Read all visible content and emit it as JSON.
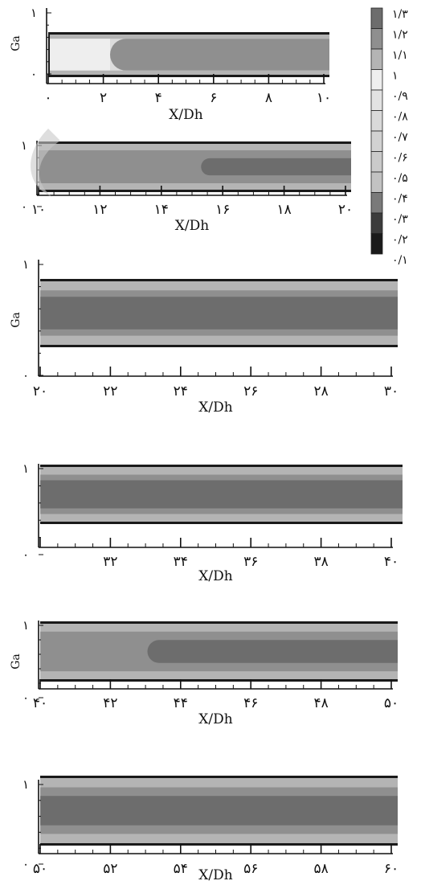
{
  "chart_data": [
    {
      "type": "heatmap",
      "panel": 1,
      "xlabel": "X/Dh",
      "ylabel": "Ga",
      "xlim": [
        0,
        10
      ],
      "ylim": [
        0,
        1
      ],
      "xticks": [
        "۰",
        "۲",
        "۴",
        "۶",
        "۸",
        "۱۰"
      ],
      "yticks": [
        "۰",
        "۱"
      ],
      "bands": [
        {
          "y": [
            0.88,
            1.0
          ],
          "level": "۱/۱"
        },
        {
          "y": [
            0.12,
            0.88
          ],
          "level": "۱/۲",
          "from_x": 2.2
        },
        {
          "y": [
            0.12,
            0.88
          ],
          "level": "۱",
          "to_x": 2.2
        },
        {
          "y": [
            0.0,
            0.12
          ],
          "level": "۱/۱"
        }
      ]
    },
    {
      "type": "heatmap",
      "panel": 2,
      "xlabel": "X/Dh",
      "ylabel": "",
      "xlim": [
        10,
        20
      ],
      "ylim": [
        0,
        1
      ],
      "xticks": [
        "۱۰",
        "۱۲",
        "۱۴",
        "۱۶",
        "۱۸",
        "۲۰"
      ],
      "yticks": [
        "۰",
        "۱"
      ],
      "bands": [
        {
          "y": [
            0.85,
            1.0
          ],
          "level": "۱/۱"
        },
        {
          "y": [
            0.15,
            0.85
          ],
          "level": "۱/۲"
        },
        {
          "y": [
            0.32,
            0.68
          ],
          "level": "۱/۳",
          "from_x": 15.2
        },
        {
          "y": [
            0.0,
            0.15
          ],
          "level": "۱/۱"
        }
      ]
    },
    {
      "type": "heatmap",
      "panel": 3,
      "xlabel": "X/Dh",
      "ylabel": "Ga",
      "xlim": [
        20,
        30
      ],
      "ylim": [
        0,
        1
      ],
      "xticks": [
        "۲۰",
        "۲۲",
        "۲۴",
        "۲۶",
        "۲۸",
        "۳۰"
      ],
      "yticks": [
        "۰",
        "۱"
      ],
      "bands": [
        {
          "y": [
            0.85,
            1.0
          ],
          "level": "۱/۱"
        },
        {
          "y": [
            0.15,
            0.85
          ],
          "level": "۱/۲"
        },
        {
          "y": [
            0.25,
            0.75
          ],
          "level": "۱/۳"
        },
        {
          "y": [
            0.0,
            0.15
          ],
          "level": "۱/۱"
        }
      ]
    },
    {
      "type": "heatmap",
      "panel": 4,
      "xlabel": "X/Dh",
      "ylabel": "",
      "xlim": [
        30,
        40
      ],
      "ylim": [
        0,
        1
      ],
      "xticks": [
        "۳۲",
        "۳۴",
        "۳۶",
        "۳۸",
        "۴۰"
      ],
      "yticks": [
        "۰",
        "۱"
      ],
      "bands": [
        {
          "y": [
            0.85,
            1.0
          ],
          "level": "۱/۱"
        },
        {
          "y": [
            0.15,
            0.85
          ],
          "level": "۱/۲"
        },
        {
          "y": [
            0.25,
            0.75
          ],
          "level": "۱/۳"
        },
        {
          "y": [
            0.0,
            0.15
          ],
          "level": "۱/۱"
        }
      ]
    },
    {
      "type": "heatmap",
      "panel": 5,
      "xlabel": "X/Dh",
      "ylabel": "Ga",
      "xlim": [
        40,
        50
      ],
      "ylim": [
        0,
        1
      ],
      "xticks": [
        "۴۰",
        "۴۲",
        "۴۴",
        "۴۶",
        "۴۸",
        "۵۰"
      ],
      "yticks": [
        "۰",
        "۱"
      ],
      "bands": [
        {
          "y": [
            0.85,
            1.0
          ],
          "level": "۱/۱"
        },
        {
          "y": [
            0.15,
            0.85
          ],
          "level": "۱/۲"
        },
        {
          "y": [
            0.3,
            0.7
          ],
          "level": "۱/۳",
          "from_x": 43.0
        },
        {
          "y": [
            0.0,
            0.15
          ],
          "level": "۱/۱"
        }
      ]
    },
    {
      "type": "heatmap",
      "panel": 6,
      "xlabel": "X/Dh",
      "ylabel": "",
      "xlim": [
        50,
        60
      ],
      "ylim": [
        0,
        1
      ],
      "xticks": [
        "۵۰",
        "۵۲",
        "۵۴",
        "۵۶",
        "۵۸",
        "۶۰"
      ],
      "yticks": [
        "۰",
        "۱"
      ],
      "bands": [
        {
          "y": [
            0.85,
            1.0
          ],
          "level": "۱/۱"
        },
        {
          "y": [
            0.15,
            0.85
          ],
          "level": "۱/۲"
        },
        {
          "y": [
            0.28,
            0.72
          ],
          "level": "۱/۳"
        },
        {
          "y": [
            0.0,
            0.15
          ],
          "level": "۱/۱"
        }
      ]
    }
  ],
  "legend": {
    "levels": [
      {
        "label": "۱/۳",
        "color": "#6d6d6d"
      },
      {
        "label": "۱/۲",
        "color": "#8f8f8f"
      },
      {
        "label": "۱/۱",
        "color": "#b4b4b4"
      },
      {
        "label": "۱",
        "color": "#eeeeee"
      },
      {
        "label": "۰/۹",
        "color": "#e2e2e2"
      },
      {
        "label": "۰/۸",
        "color": "#d9d9d9"
      },
      {
        "label": "۰/۷",
        "color": "#d2d2d2"
      },
      {
        "label": "۰/۶",
        "color": "#cacaca"
      },
      {
        "label": "۰/۵",
        "color": "#c2c2c2"
      },
      {
        "label": "۰/۴",
        "color": "#7a7a7a"
      },
      {
        "label": "۰/۳",
        "color": "#3c3c3c"
      },
      {
        "label": "۰/۲",
        "color": "#1a1a1a"
      },
      {
        "label": "۰/۱",
        "color": ""
      }
    ]
  },
  "colors": {
    "wall": "#1a1a1a",
    "edge_light": "#dcdcdc",
    "watermark": "#c8c8c8"
  }
}
